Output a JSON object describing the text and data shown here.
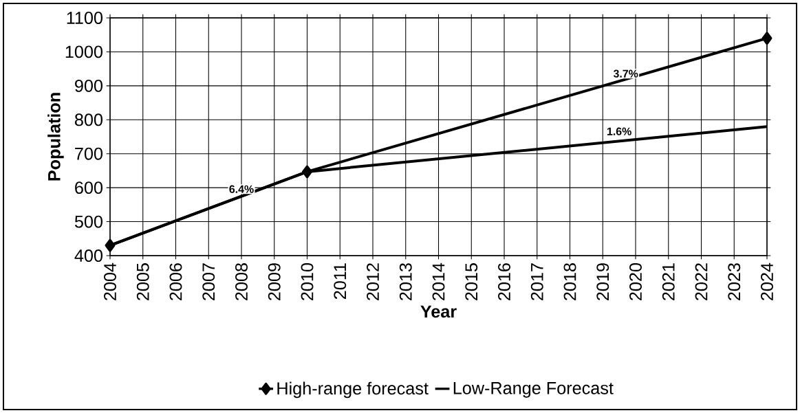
{
  "chart_data": {
    "type": "line",
    "xlabel": "Year",
    "ylabel": "Population",
    "x": [
      2004,
      2010,
      2024
    ],
    "series": [
      {
        "name": "High-range forecast",
        "color": "#000000",
        "marker": "diamond",
        "values": [
          430,
          647,
          1040
        ]
      },
      {
        "name": "Low-Range Forecast",
        "color": "#000000",
        "marker": "none",
        "values": [
          430,
          647,
          780
        ]
      }
    ],
    "xlim": [
      2004,
      2024
    ],
    "xticks": [
      2004,
      2005,
      2006,
      2007,
      2008,
      2009,
      2010,
      2011,
      2012,
      2013,
      2014,
      2015,
      2016,
      2017,
      2018,
      2019,
      2020,
      2021,
      2022,
      2023,
      2024
    ],
    "ylim": [
      400,
      1100
    ],
    "yticks": [
      400,
      500,
      600,
      700,
      800,
      900,
      1000,
      1100
    ],
    "annotations": [
      {
        "text": "6.4%",
        "x": 2008,
        "y": 565
      },
      {
        "text": "3.7%",
        "x": 2019.7,
        "y": 905
      },
      {
        "text": "1.6%",
        "x": 2019.5,
        "y": 735
      }
    ],
    "grid": true,
    "legend": "bottom",
    "line_style": "solid"
  }
}
